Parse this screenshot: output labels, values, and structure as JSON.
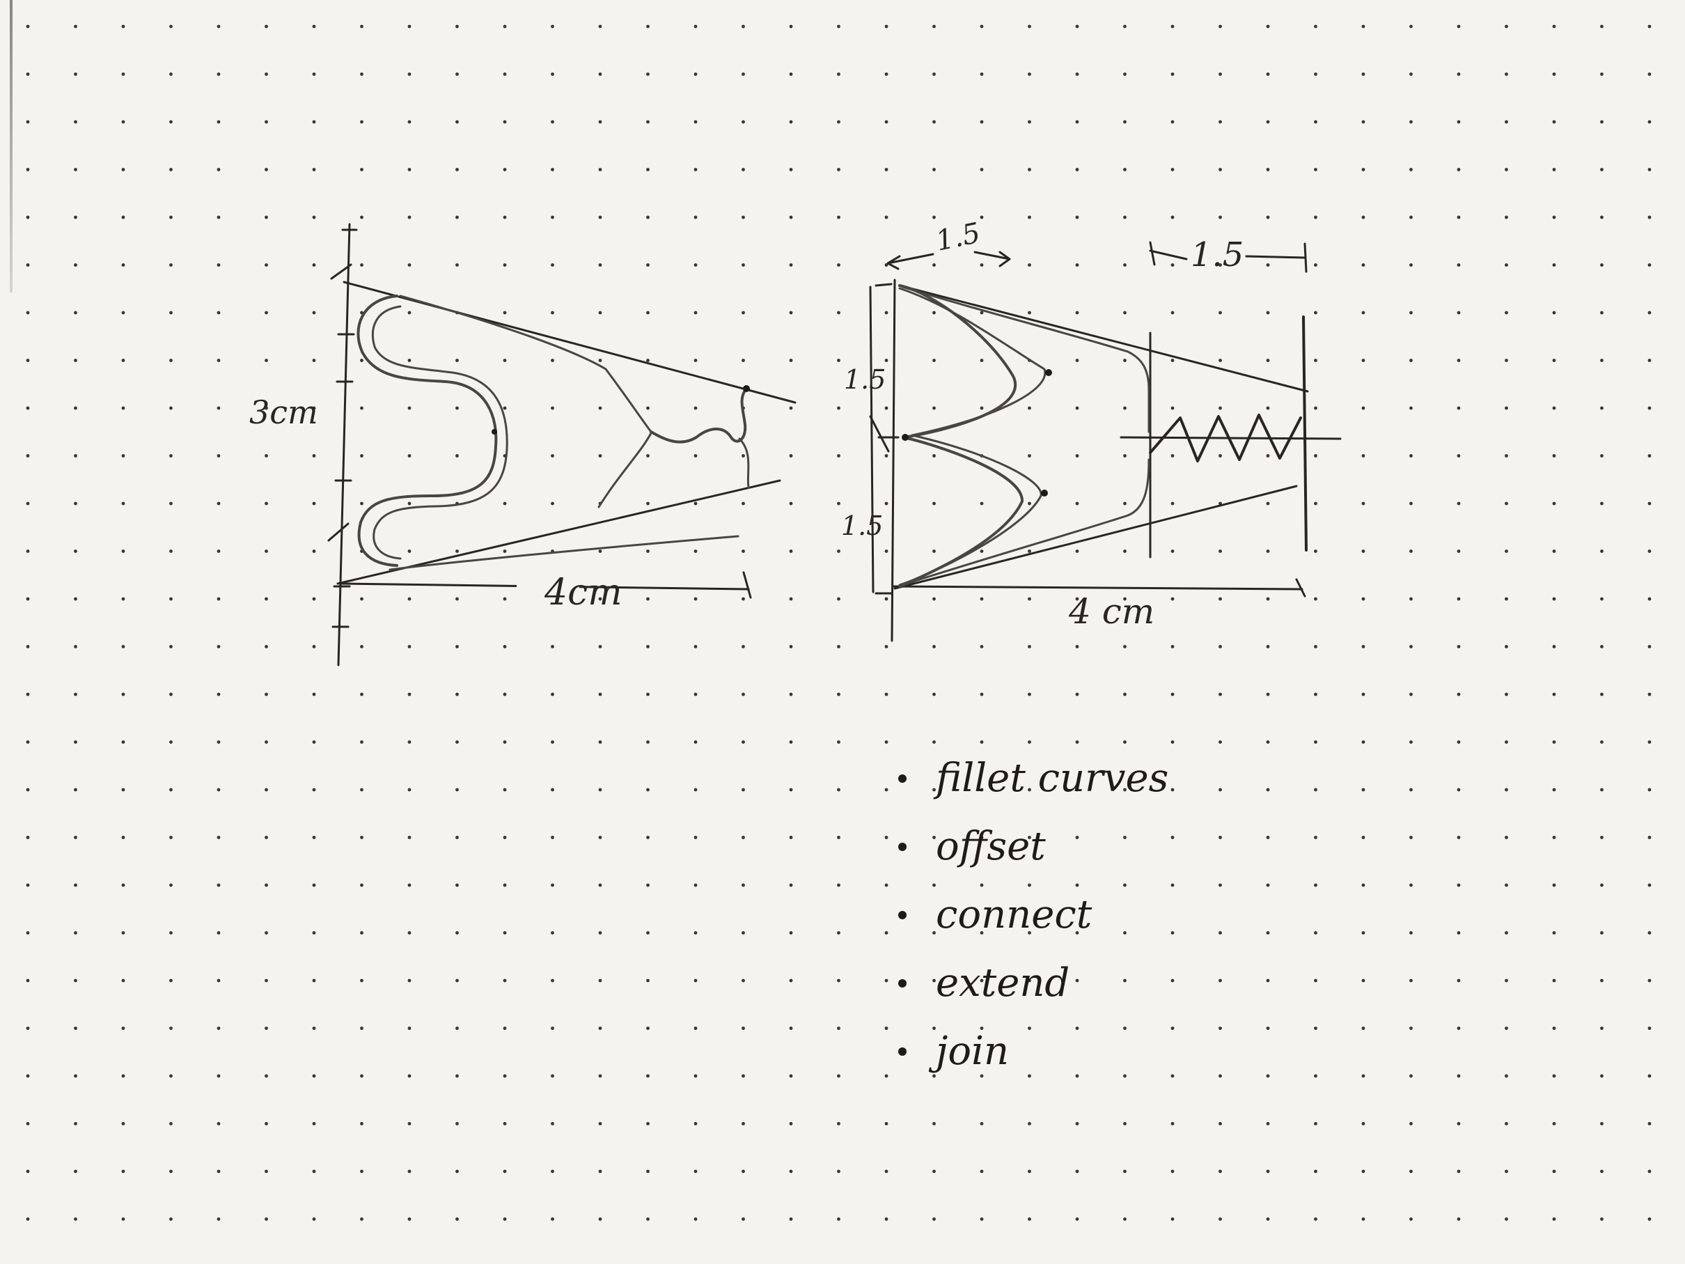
{
  "sheet": {
    "paper_color": "#f5f3ee",
    "dot_color": "#3a3532",
    "ink_color": "#2a2523",
    "pencil_color": "#4a4542"
  },
  "left_sketch": {
    "height_label": "3cm",
    "width_label": "4cm"
  },
  "right_sketch": {
    "top_left_label": "1.5",
    "top_right_label": "1.5",
    "side_label_upper": "1.5",
    "side_label_lower": "1.5",
    "width_label": "4 cm"
  },
  "notes": {
    "items": [
      "fillet curves",
      "offset",
      "connect",
      "extend",
      "join"
    ]
  }
}
